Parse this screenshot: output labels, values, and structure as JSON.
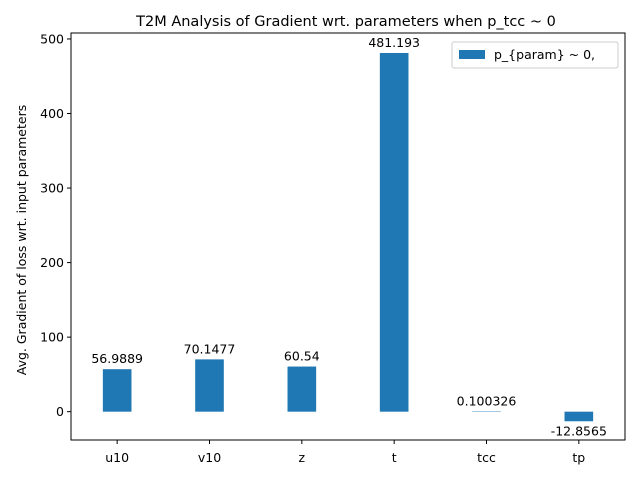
{
  "chart_data": {
    "type": "bar",
    "title": "T2M Analysis of Gradient wrt. parameters when p_tcc ~ 0",
    "xlabel": "",
    "ylabel": "Avg. Gradient of loss wrt. input parameters",
    "categories": [
      "u10",
      "v10",
      "z",
      "t",
      "tcc",
      "tp"
    ],
    "values": [
      56.9889,
      70.1477,
      60.54,
      481.193,
      0.100326,
      -12.8565
    ],
    "value_labels": [
      "56.9889",
      "70.1477",
      "60.54",
      "481.193",
      "0.100326",
      "-12.8565"
    ],
    "series": [
      {
        "name": "p_{param} ~ 0,",
        "color": "#1f77b4"
      }
    ],
    "ylim": [
      -38,
      508
    ],
    "yticks": [
      0,
      100,
      200,
      300,
      400,
      500
    ],
    "legend": "upper right",
    "grid": false
  }
}
